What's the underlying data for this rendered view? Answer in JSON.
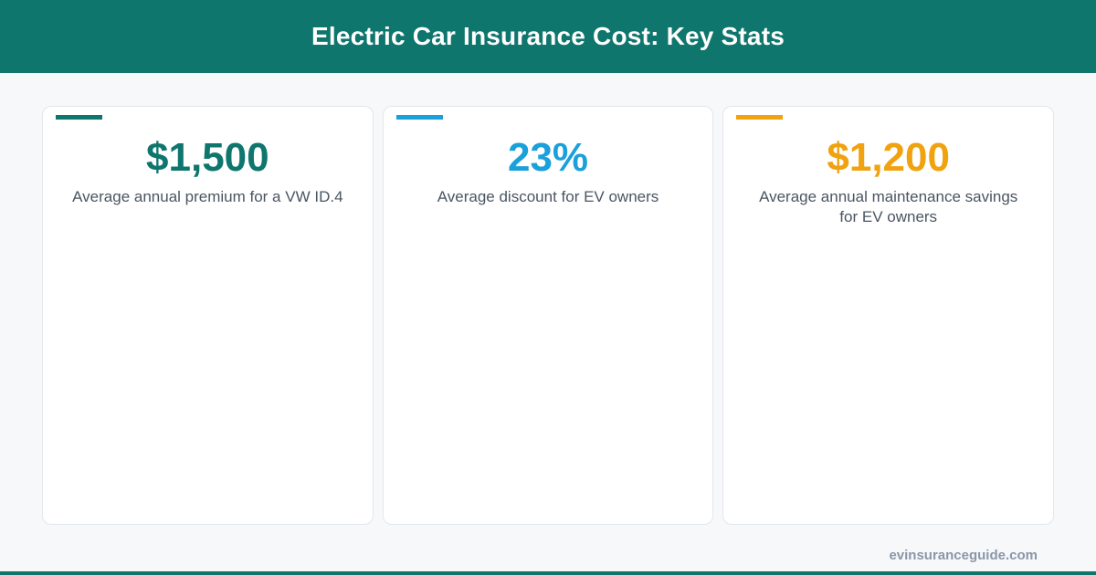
{
  "header": {
    "title": "Electric Car Insurance Cost: Key Stats"
  },
  "colors": {
    "header_bg": "#0f766e",
    "teal": "#0f766e",
    "blue": "#1aa0db",
    "orange": "#f0a20f",
    "text_muted": "#4a5563",
    "footer_text": "#8a97a8"
  },
  "cards": [
    {
      "value": "$1,500",
      "desc_line1": "Average annual premium for a VW ID.4",
      "desc_line2": "",
      "accent": "#0f766e"
    },
    {
      "value": "23%",
      "desc_line1": "Average discount for EV owners",
      "desc_line2": "",
      "accent": "#1aa0db"
    },
    {
      "value": "$1,200",
      "desc_line1": "Average annual maintenance savings",
      "desc_line2": "for EV owners",
      "accent": "#f0a20f"
    }
  ],
  "footer": {
    "site": "evinsuranceguide.com"
  }
}
